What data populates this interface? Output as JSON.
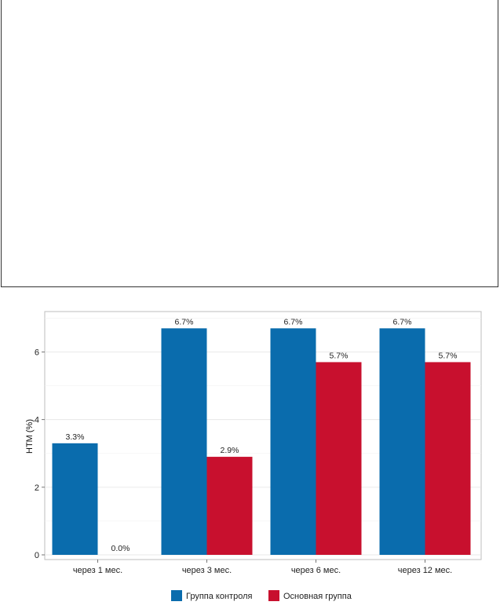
{
  "chart_data": {
    "type": "bar",
    "categories": [
      "через 1 мес.",
      "через 3 мес.",
      "через 6 мес.",
      "через 12 мес."
    ],
    "series": [
      {
        "name": "Группа контроля",
        "values": [
          3.3,
          6.7,
          6.7,
          6.7
        ],
        "labels": [
          "3.3%",
          "6.7%",
          "6.7%",
          "6.7%"
        ],
        "color": "#0a6cad"
      },
      {
        "name": "Основная группа",
        "values": [
          0.0,
          2.9,
          5.7,
          5.7
        ],
        "labels": [
          "0.0%",
          "2.9%",
          "5.7%",
          "5.7%"
        ],
        "color": "#c8102e"
      }
    ],
    "title": "",
    "xlabel": "",
    "ylabel": "НТМ (%)",
    "ylim": [
      0,
      7.2
    ],
    "yticks": [
      0,
      2,
      4,
      6
    ],
    "grid": true,
    "legend_position": "bottom"
  }
}
